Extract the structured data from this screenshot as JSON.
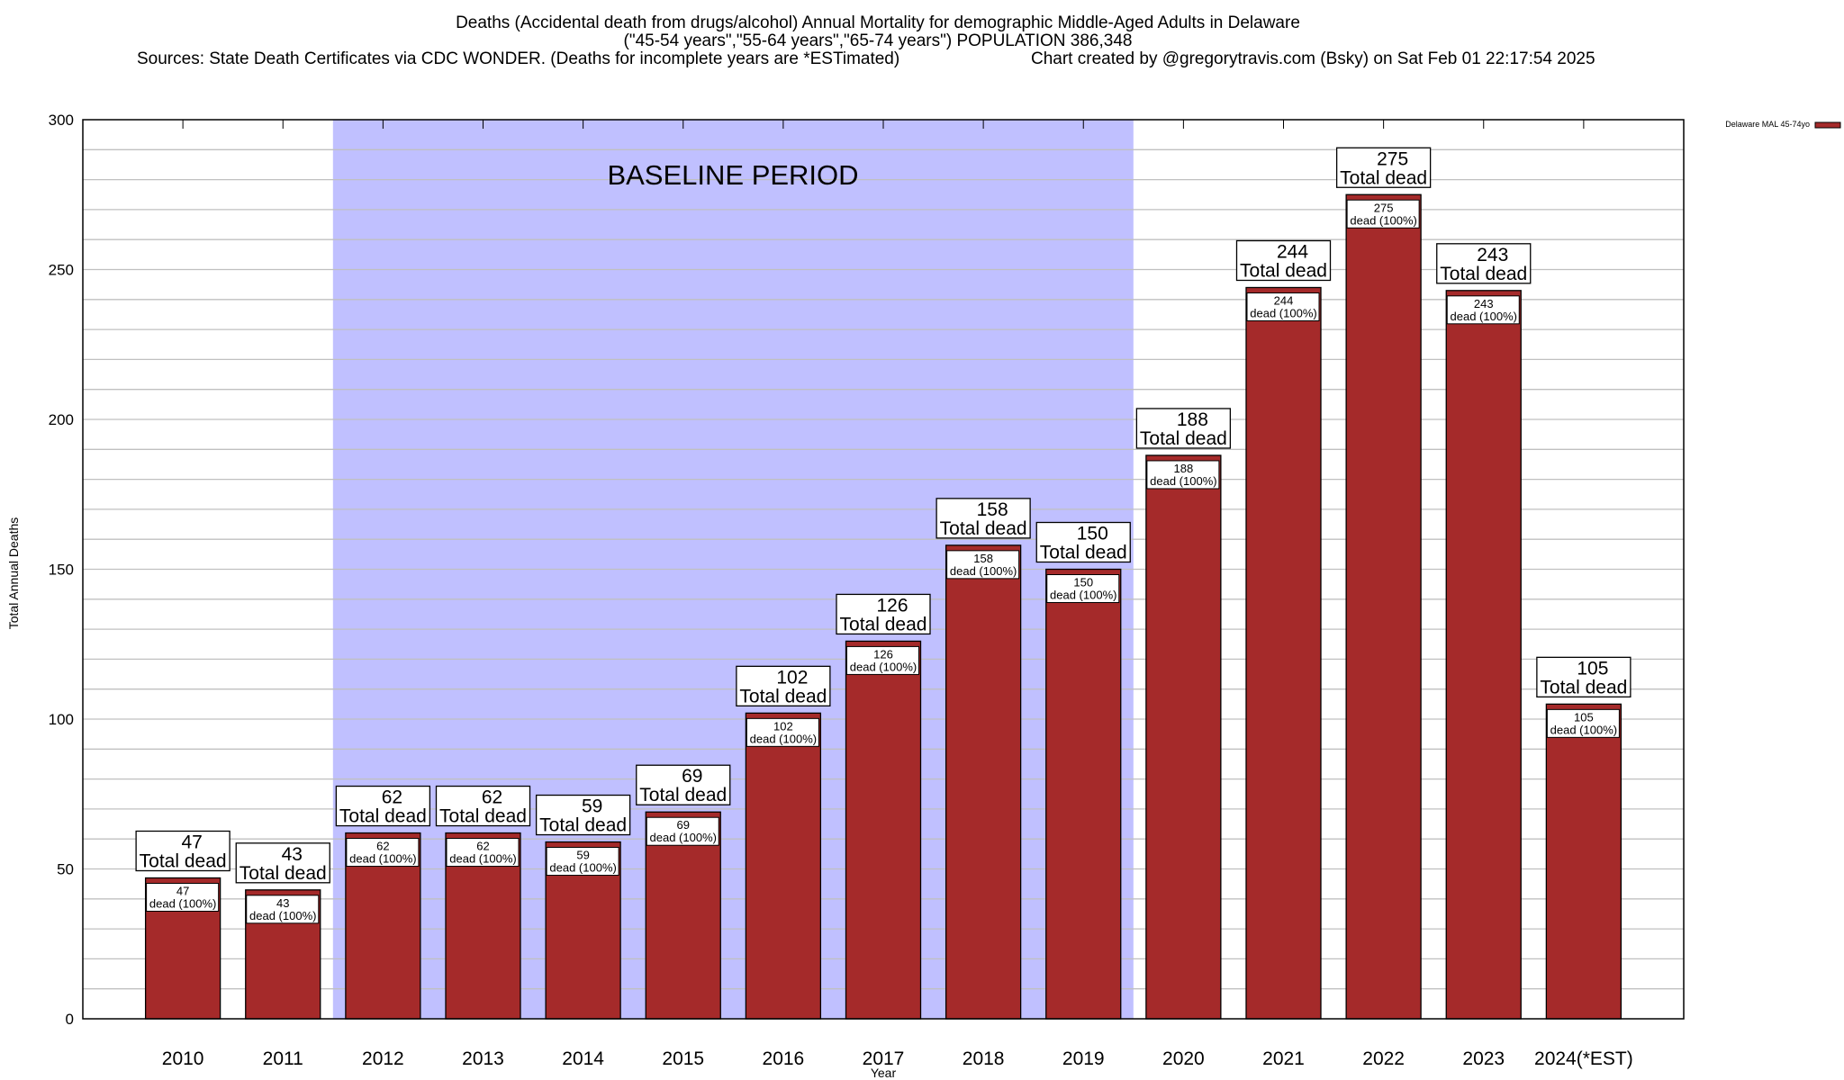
{
  "chart_data": {
    "type": "bar",
    "title_lines": [
      "Deaths (Accidental death from drugs/alcohol) Annual Mortality for demographic Middle-Aged Adults in Delaware",
      "(\"45-54 years\",\"55-64 years\",\"65-74 years\") POPULATION 386,348"
    ],
    "sources": "Sources: State Death Certificates via CDC WONDER. (Deaths for incomplete years are *ESTimated)",
    "credit": "Chart created by @gregorytravis.com (Bsky) on Sat Feb 01 22:17:54 2025",
    "xlabel": "Year",
    "ylabel": "Total Annual Deaths",
    "ylim": [
      0,
      300
    ],
    "yticks": [
      0,
      50,
      100,
      150,
      200,
      250,
      300
    ],
    "minor_grid_step": 10,
    "grid": true,
    "legend": {
      "label": "Delaware MAL 45-74yo",
      "placement": "top-right outside"
    },
    "annotation": "BASELINE PERIOD",
    "baseline_range": [
      "2012",
      "2019"
    ],
    "categories": [
      "2010",
      "2011",
      "2012",
      "2013",
      "2014",
      "2015",
      "2016",
      "2017",
      "2018",
      "2019",
      "2020",
      "2021",
      "2022",
      "2023",
      "2024(*EST)"
    ],
    "series": [
      {
        "name": "Delaware MAL 45-74yo",
        "values": [
          47,
          43,
          62,
          62,
          59,
          69,
          102,
          126,
          158,
          150,
          188,
          244,
          275,
          243,
          105
        ]
      }
    ],
    "total_label_suffix": "Total dead",
    "inner_label_suffix": "dead (100%)",
    "colors": {
      "bar": "#a52a2a",
      "baseline": "#c0c0ff",
      "grid": "#c0c0c0"
    }
  }
}
